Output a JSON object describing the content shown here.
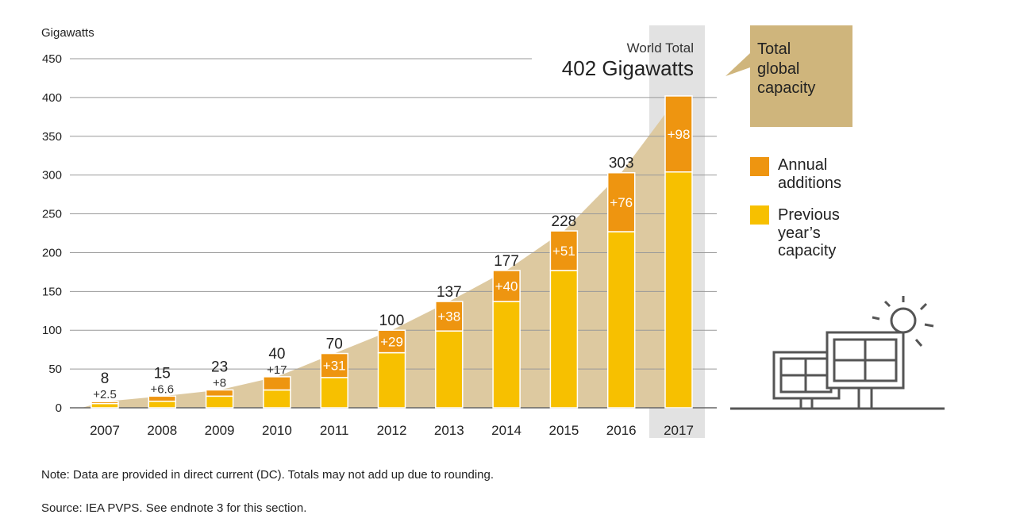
{
  "chart_data": {
    "type": "bar",
    "stacked": true,
    "title": "",
    "ylabel": "Gigawatts",
    "xlabel": "",
    "ylim": [
      0,
      450
    ],
    "yticks": [
      0,
      50,
      100,
      150,
      200,
      250,
      300,
      350,
      400,
      450
    ],
    "categories": [
      "2007",
      "2008",
      "2009",
      "2010",
      "2011",
      "2012",
      "2013",
      "2014",
      "2015",
      "2016",
      "2017"
    ],
    "series": [
      {
        "name": "Previous year's capacity",
        "color": "#f7c000",
        "values": [
          5.5,
          8.4,
          15,
          23,
          39,
          71,
          99,
          137,
          177,
          227,
          304
        ]
      },
      {
        "name": "Annual additions",
        "color": "#ee9510",
        "values": [
          2.5,
          6.6,
          8,
          17,
          31,
          29,
          38,
          40,
          51,
          76,
          98
        ]
      }
    ],
    "total_labels": [
      "8",
      "15",
      "23",
      "40",
      "70",
      "100",
      "137",
      "177",
      "228",
      "303",
      ""
    ],
    "addition_labels": [
      "+2.5",
      "+6.6",
      "+8",
      "+17",
      "+31",
      "+29",
      "+38",
      "+40",
      "+51",
      "+76",
      "+98"
    ],
    "highlight_category": "2017",
    "area_color": "#ddc9a0"
  },
  "world_total": {
    "label": "World Total",
    "value": "402 Gigawatts"
  },
  "callout": {
    "lines": [
      "Total",
      "global",
      "capacity"
    ],
    "color": "#cfb57c"
  },
  "legend": [
    {
      "lines": [
        "Annual",
        "additions"
      ],
      "color": "#ee9510"
    },
    {
      "lines": [
        "Previous",
        "year’s",
        "capacity"
      ],
      "color": "#f7c000"
    }
  ],
  "footer": {
    "note": "Note: Data are provided in direct current (DC). Totals may not add up due to rounding.",
    "source": "Source: IEA PVPS. See endnote 3 for this section."
  }
}
